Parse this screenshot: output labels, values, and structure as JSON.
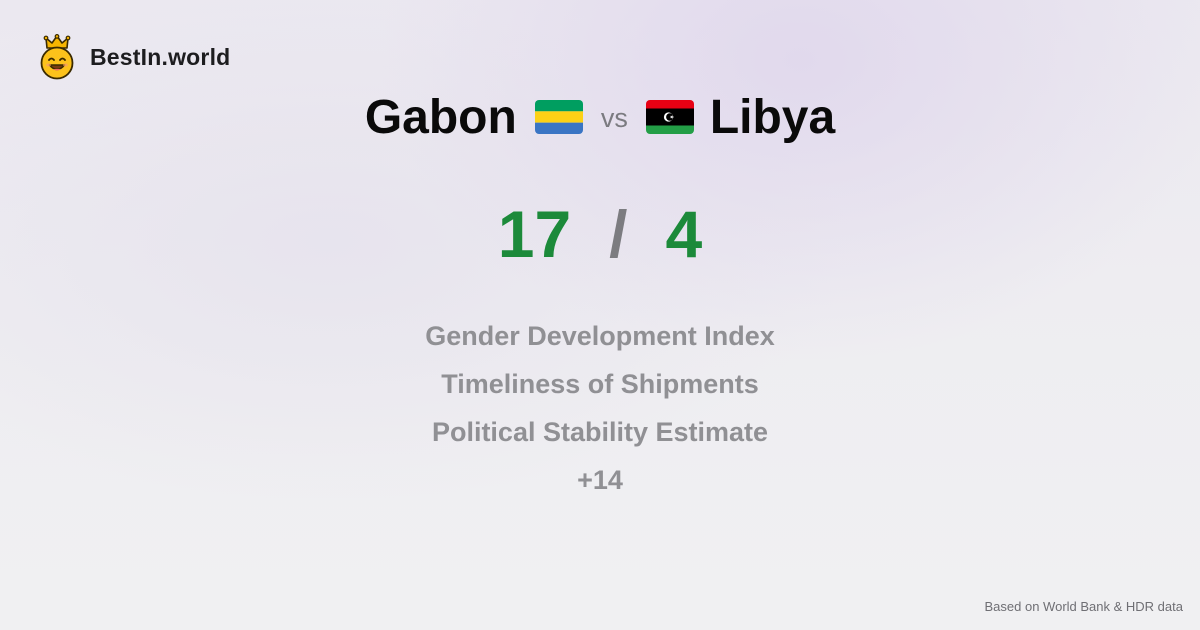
{
  "brand": {
    "name": "BestIn.world",
    "logo_icon": "crowned-smiley-icon"
  },
  "comparison": {
    "left": {
      "name": "Gabon",
      "flag_icon": "gabon-flag-icon",
      "flag_colors": [
        "#009e60",
        "#fcd116",
        "#3a75c4"
      ],
      "score": "17"
    },
    "separator": "vs",
    "right": {
      "name": "Libya",
      "flag_icon": "libya-flag-icon",
      "flag_colors": [
        "#e70013",
        "#000000",
        "#239e46"
      ],
      "score": "4"
    },
    "score_separator": "/"
  },
  "metrics": [
    "Gender Development Index",
    "Timeliness of Shipments",
    "Political Stability Estimate",
    "+14"
  ],
  "footer": {
    "source": "Based on World Bank & HDR data"
  },
  "colors": {
    "score": "#1c8a3a",
    "muted": "#909094"
  }
}
